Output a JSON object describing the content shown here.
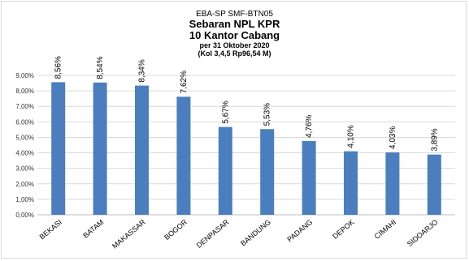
{
  "chart_data": {
    "type": "bar",
    "title_lines": [
      "EBA-SP  SMF-BTN05",
      "Sebaran NPL KPR",
      "10 Kantor Cabang",
      "per 31 Oktober 2020",
      "(Kol 3,4,5 Rp96,54  M)"
    ],
    "categories": [
      "BEKASI",
      "BATAM",
      "MAKASSAR",
      "BOGOR",
      "DENPASAR",
      "BANDUNG",
      "PADANG",
      "DEPOK",
      "CIMAHI",
      "SIDOARJO"
    ],
    "values": [
      8.56,
      8.54,
      8.34,
      7.62,
      5.67,
      5.53,
      4.76,
      4.1,
      4.03,
      3.89
    ],
    "value_labels": [
      "8,56%",
      "8,54%",
      "8,34%",
      "7,62%",
      "5,67%",
      "5,53%",
      "4,76%",
      "4,10%",
      "4,03%",
      "3,89%"
    ],
    "yticks": [
      0,
      1,
      2,
      3,
      4,
      5,
      6,
      7,
      8,
      9
    ],
    "ytick_labels": [
      "0,00%",
      "1,00%",
      "2,00%",
      "3,00%",
      "4,00%",
      "5,00%",
      "6,00%",
      "7,00%",
      "8,00%",
      "9,00%"
    ],
    "ylim": [
      0,
      9
    ],
    "grid": true,
    "bar_color": "#4a7ebf",
    "grid_color": "#d9d9d9"
  }
}
